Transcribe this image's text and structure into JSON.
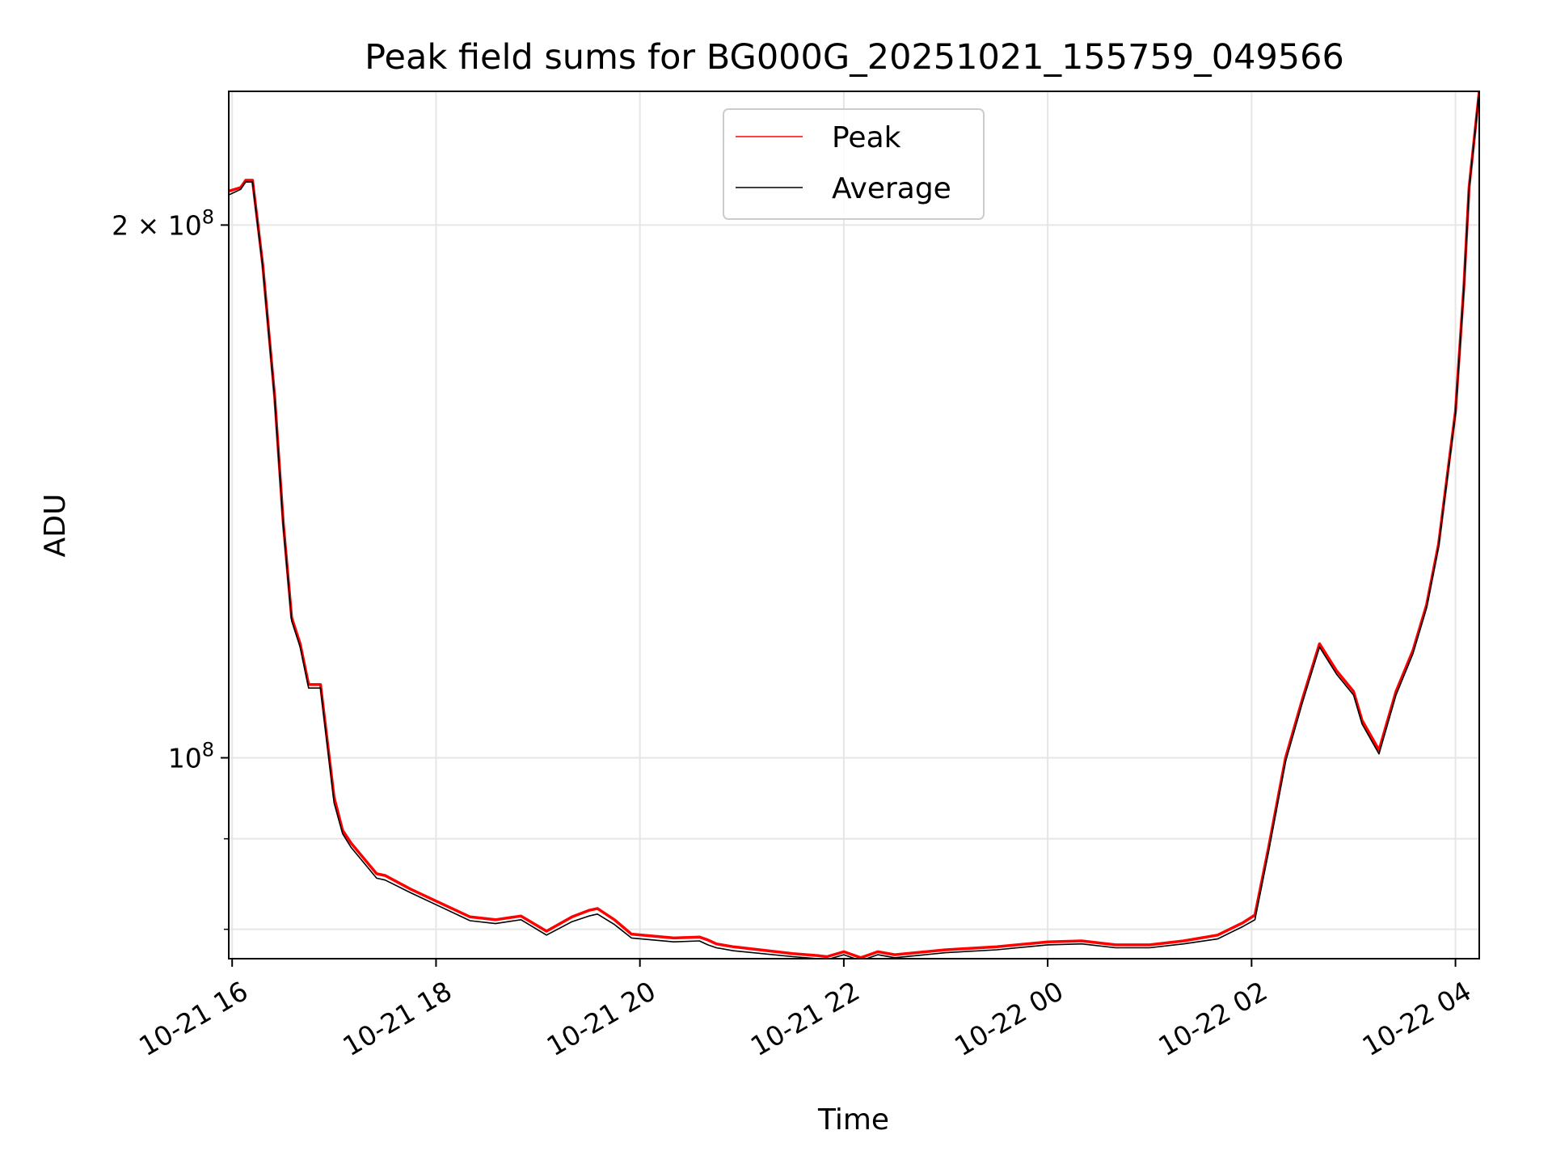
{
  "chart_data": {
    "type": "line",
    "title": "Peak field sums for BG000G_20251021_155759_049566",
    "xlabel": "Time",
    "ylabel": "ADU",
    "x_scale": "time",
    "y_scale": "log",
    "xlim": [
      "2025-10-21 15:58",
      "2025-10-22 04:14"
    ],
    "ylim": [
      77000000,
      238000000
    ],
    "grid": true,
    "legend_position": "top-center",
    "x_tick_labels": [
      "10-21 16",
      "10-21 18",
      "10-21 20",
      "10-21 22",
      "10-22 00",
      "10-22 02",
      "10-22 04"
    ],
    "x_ticks": [
      "2025-10-21 16:00",
      "2025-10-21 18:00",
      "2025-10-21 20:00",
      "2025-10-21 22:00",
      "2025-10-22 00:00",
      "2025-10-22 02:00",
      "2025-10-22 04:00"
    ],
    "y_major_ticks": [
      {
        "value": 100000000,
        "mantissa": "",
        "exponent": "8"
      },
      {
        "value": 200000000,
        "mantissa": "2",
        "exponent": "8"
      }
    ],
    "y_minor_ticks": [
      80000000,
      90000000
    ],
    "series": [
      {
        "name": "Peak",
        "color": "#ff0000",
        "x": [
          "2025-10-21 15:58",
          "2025-10-21 16:05",
          "2025-10-21 16:08",
          "2025-10-21 16:12",
          "2025-10-21 16:18",
          "2025-10-21 16:25",
          "2025-10-21 16:30",
          "2025-10-21 16:35",
          "2025-10-21 16:40",
          "2025-10-21 16:45",
          "2025-10-21 16:52",
          "2025-10-21 17:00",
          "2025-10-21 17:05",
          "2025-10-21 17:10",
          "2025-10-21 17:25",
          "2025-10-21 17:30",
          "2025-10-21 17:45",
          "2025-10-21 18:00",
          "2025-10-21 18:20",
          "2025-10-21 18:35",
          "2025-10-21 18:50",
          "2025-10-21 19:05",
          "2025-10-21 19:20",
          "2025-10-21 19:30",
          "2025-10-21 19:35",
          "2025-10-21 19:45",
          "2025-10-21 19:55",
          "2025-10-21 20:20",
          "2025-10-21 20:35",
          "2025-10-21 20:40",
          "2025-10-21 20:45",
          "2025-10-21 20:55",
          "2025-10-21 21:30",
          "2025-10-21 21:45",
          "2025-10-21 21:50",
          "2025-10-21 22:00",
          "2025-10-21 22:10",
          "2025-10-21 22:20",
          "2025-10-21 22:30",
          "2025-10-21 23:00",
          "2025-10-21 23:30",
          "2025-10-22 00:00",
          "2025-10-22 00:20",
          "2025-10-22 00:40",
          "2025-10-22 01:00",
          "2025-10-22 01:20",
          "2025-10-22 01:40",
          "2025-10-22 01:55",
          "2025-10-22 02:02",
          "2025-10-22 02:10",
          "2025-10-22 02:20",
          "2025-10-22 02:30",
          "2025-10-22 02:40",
          "2025-10-22 02:50",
          "2025-10-22 03:00",
          "2025-10-22 03:05",
          "2025-10-22 03:15",
          "2025-10-22 03:25",
          "2025-10-22 03:35",
          "2025-10-22 03:43",
          "2025-10-22 03:50",
          "2025-10-22 04:00",
          "2025-10-22 04:05",
          "2025-10-22 04:08",
          "2025-10-22 04:14"
        ],
        "y": [
          209000000,
          210000000,
          212000000,
          212000000,
          190000000,
          160000000,
          136000000,
          120000000,
          116000000,
          110000000,
          110000000,
          95000000,
          91000000,
          89500000,
          86000000,
          85800000,
          84300000,
          83000000,
          81300000,
          81000000,
          81400000,
          79800000,
          81300000,
          82000000,
          82200000,
          81000000,
          79500000,
          79100000,
          79200000,
          78900000,
          78500000,
          78200000,
          77500000,
          77300000,
          77200000,
          77700000,
          77100000,
          77700000,
          77400000,
          77900000,
          78200000,
          78700000,
          78800000,
          78400000,
          78400000,
          78800000,
          79400000,
          80700000,
          81500000,
          89000000,
          100000000,
          108000000,
          116000000,
          112000000,
          109000000,
          105000000,
          101000000,
          109000000,
          115000000,
          122000000,
          132000000,
          157000000,
          185000000,
          210000000,
          238000000
        ]
      },
      {
        "name": "Average",
        "color": "#000000",
        "x": [
          "2025-10-21 15:58",
          "2025-10-21 16:05",
          "2025-10-21 16:08",
          "2025-10-21 16:12",
          "2025-10-21 16:18",
          "2025-10-21 16:25",
          "2025-10-21 16:30",
          "2025-10-21 16:35",
          "2025-10-21 16:40",
          "2025-10-21 16:45",
          "2025-10-21 16:52",
          "2025-10-21 17:00",
          "2025-10-21 17:05",
          "2025-10-21 17:10",
          "2025-10-21 17:25",
          "2025-10-21 17:30",
          "2025-10-21 17:45",
          "2025-10-21 18:00",
          "2025-10-21 18:20",
          "2025-10-21 18:35",
          "2025-10-21 18:50",
          "2025-10-21 19:05",
          "2025-10-21 19:20",
          "2025-10-21 19:30",
          "2025-10-21 19:35",
          "2025-10-21 19:45",
          "2025-10-21 19:55",
          "2025-10-21 20:20",
          "2025-10-21 20:35",
          "2025-10-21 20:40",
          "2025-10-21 20:45",
          "2025-10-21 20:55",
          "2025-10-21 21:30",
          "2025-10-21 21:45",
          "2025-10-21 21:50",
          "2025-10-21 22:00",
          "2025-10-21 22:10",
          "2025-10-21 22:20",
          "2025-10-21 22:30",
          "2025-10-21 23:00",
          "2025-10-21 23:30",
          "2025-10-22 00:00",
          "2025-10-22 00:20",
          "2025-10-22 00:40",
          "2025-10-22 01:00",
          "2025-10-22 01:20",
          "2025-10-22 01:40",
          "2025-10-22 01:55",
          "2025-10-22 02:02",
          "2025-10-22 02:10",
          "2025-10-22 02:20",
          "2025-10-22 02:30",
          "2025-10-22 02:40",
          "2025-10-22 02:50",
          "2025-10-22 03:00",
          "2025-10-22 03:05",
          "2025-10-22 03:15",
          "2025-10-22 03:25",
          "2025-10-22 03:35",
          "2025-10-22 03:43",
          "2025-10-22 03:50",
          "2025-10-22 04:00",
          "2025-10-22 04:05",
          "2025-10-22 04:08",
          "2025-10-22 04:14"
        ],
        "y": [
          208000000,
          209500000,
          211500000,
          211500000,
          189500000,
          159500000,
          135500000,
          119500000,
          115500000,
          109500000,
          109500000,
          94300000,
          90600000,
          89000000,
          85500000,
          85300000,
          83900000,
          82600000,
          80900000,
          80600000,
          81000000,
          79400000,
          80800000,
          81400000,
          81600000,
          80500000,
          79100000,
          78700000,
          78800000,
          78400000,
          78100000,
          77800000,
          77200000,
          77000000,
          76900000,
          77400000,
          76800000,
          77400000,
          77100000,
          77600000,
          77900000,
          78400000,
          78500000,
          78100000,
          78100000,
          78500000,
          79000000,
          80300000,
          81000000,
          88500000,
          99500000,
          107500000,
          115500000,
          111500000,
          108500000,
          104500000,
          100500000,
          108500000,
          114500000,
          121500000,
          131500000,
          156500000,
          184500000,
          209500000,
          238000000
        ]
      }
    ]
  }
}
